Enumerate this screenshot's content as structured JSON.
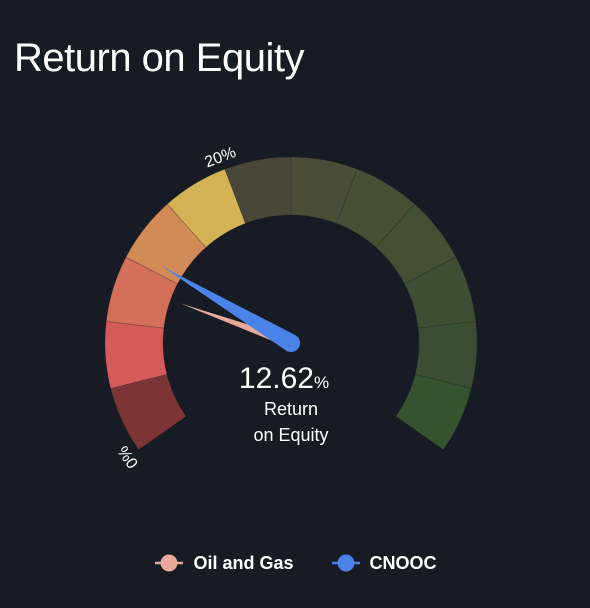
{
  "title": "Return on Equity",
  "center": {
    "value": "12.62",
    "unit": "%",
    "caption_line1": "Return",
    "caption_line2": "on Equity"
  },
  "chart_data": {
    "type": "gauge",
    "title": "Return on Equity",
    "unit": "%",
    "tick_labels": [
      "0%",
      "20%"
    ],
    "series": [
      {
        "name": "Oil and Gas",
        "value": 10.5,
        "color": "#e8a89a"
      },
      {
        "name": "CNOOC",
        "value": 12.62,
        "color": "#4a82e8"
      }
    ],
    "band_colors": [
      "#7d3434",
      "#d55a5a",
      "#d46f59",
      "#d28a57",
      "#d4b356",
      "#4a4738",
      "#4a4d37",
      "#474f35",
      "#434f34",
      "#3f4d33",
      "#3b4d32",
      "#36532f"
    ]
  },
  "legend": [
    {
      "label": "Oil and Gas",
      "color": "#e8a89a"
    },
    {
      "label": "CNOOC",
      "color": "#4a82e8"
    }
  ]
}
